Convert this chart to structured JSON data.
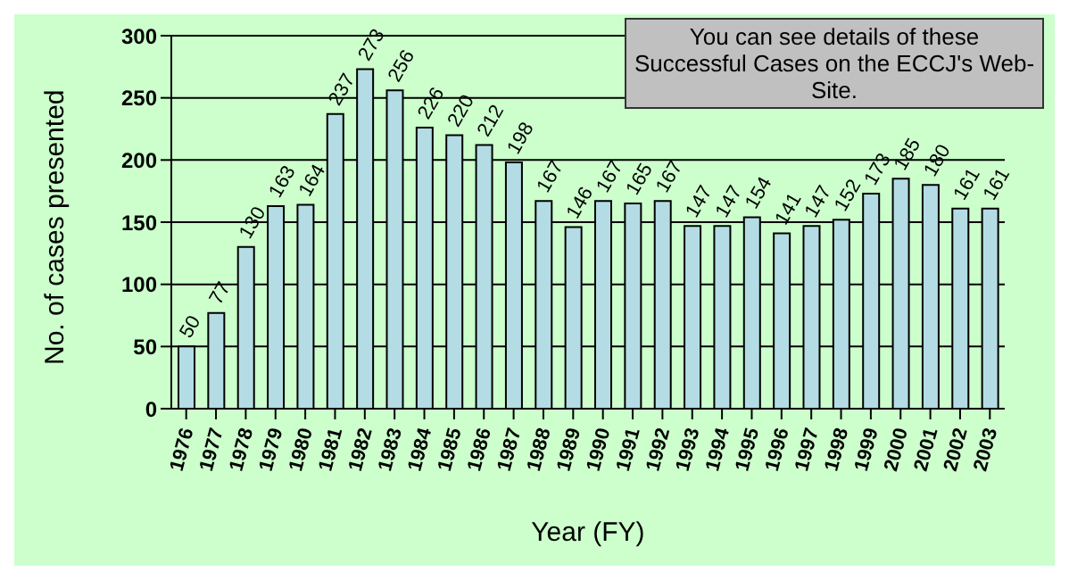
{
  "chart_data": {
    "type": "bar",
    "xlabel": "Year (FY)",
    "ylabel": "No. of cases presented",
    "categories": [
      "1976",
      "1977",
      "1978",
      "1979",
      "1980",
      "1981",
      "1982",
      "1983",
      "1984",
      "1985",
      "1986",
      "1987",
      "1988",
      "1989",
      "1990",
      "1991",
      "1992",
      "1993",
      "1994",
      "1995",
      "1996",
      "1997",
      "1998",
      "1999",
      "2000",
      "2001",
      "2002",
      "2003"
    ],
    "values": [
      50,
      77,
      130,
      163,
      164,
      237,
      273,
      256,
      226,
      220,
      212,
      198,
      167,
      146,
      167,
      165,
      167,
      147,
      147,
      154,
      141,
      147,
      152,
      173,
      185,
      180,
      161,
      161
    ],
    "color": "#b4dce4",
    "ylim": [
      0,
      300
    ],
    "yticks": [
      0,
      50,
      100,
      150,
      200,
      250,
      300
    ],
    "grid": "y",
    "data_labels": true,
    "annotations": [
      "You can see details of these Successful Cases on the ECCJ's Web-Site."
    ]
  }
}
